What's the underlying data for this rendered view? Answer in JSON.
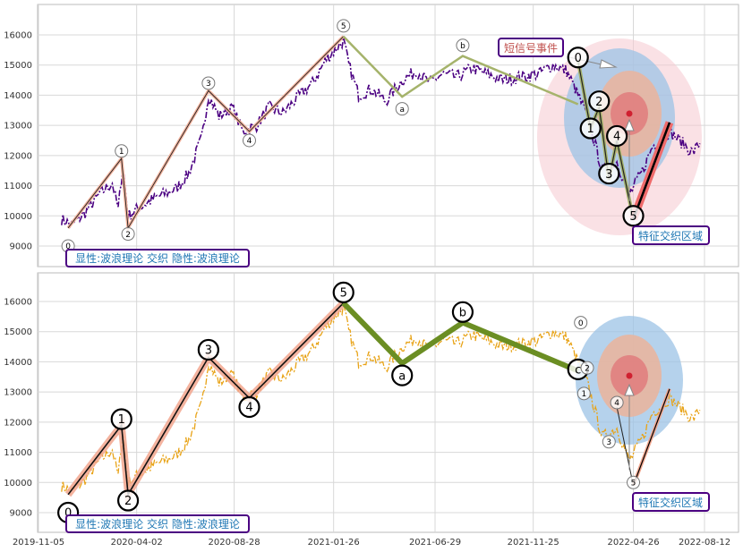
{
  "chart_data": [
    {
      "panel": "top",
      "type": "line",
      "ylim": [
        8300,
        16900
      ],
      "yticks": [
        9000,
        10000,
        11000,
        12000,
        13000,
        14000,
        15000,
        16000
      ],
      "grid": true,
      "price_series_color": "#4b0082",
      "price_series": [
        [
          "2019-12-10",
          9900
        ],
        [
          "2019-12-25",
          9700
        ],
        [
          "2020-01-15",
          10100
        ],
        [
          "2020-02-05",
          10700
        ],
        [
          "2020-02-25",
          11100
        ],
        [
          "2020-03-05",
          10200
        ],
        [
          "2020-03-12",
          11700
        ],
        [
          "2020-03-20",
          10000
        ],
        [
          "2020-04-08",
          10300
        ],
        [
          "2020-05-01",
          10600
        ],
        [
          "2020-06-01",
          10900
        ],
        [
          "2020-06-20",
          11400
        ],
        [
          "2020-07-10",
          12600
        ],
        [
          "2020-07-20",
          14000
        ],
        [
          "2020-08-05",
          13300
        ],
        [
          "2020-08-25",
          13600
        ],
        [
          "2020-09-10",
          12800
        ],
        [
          "2020-10-01",
          13000
        ],
        [
          "2020-10-20",
          13600
        ],
        [
          "2020-11-10",
          13400
        ],
        [
          "2020-12-01",
          13900
        ],
        [
          "2020-12-25",
          14400
        ],
        [
          "2021-01-15",
          15200
        ],
        [
          "2021-02-10",
          15800
        ],
        [
          "2021-02-18",
          15000
        ],
        [
          "2021-03-05",
          14000
        ],
        [
          "2021-03-25",
          14200
        ],
        [
          "2021-04-15",
          13800
        ],
        [
          "2021-05-10",
          14500
        ],
        [
          "2021-06-01",
          14800
        ],
        [
          "2021-06-20",
          14400
        ],
        [
          "2021-07-10",
          14700
        ],
        [
          "2021-08-01",
          14600
        ],
        [
          "2021-08-25",
          14900
        ],
        [
          "2021-09-15",
          14700
        ],
        [
          "2021-10-10",
          14500
        ],
        [
          "2021-11-05",
          14600
        ],
        [
          "2021-12-01",
          14700
        ],
        [
          "2021-12-25",
          15000
        ],
        [
          "2022-01-15",
          14800
        ],
        [
          "2022-02-01",
          14000
        ],
        [
          "2022-02-15",
          13300
        ],
        [
          "2022-03-10",
          11500
        ],
        [
          "2022-04-01",
          11800
        ],
        [
          "2022-04-20",
          10700
        ],
        [
          "2022-05-10",
          11500
        ],
        [
          "2022-05-25",
          12300
        ],
        [
          "2022-06-20",
          12800
        ],
        [
          "2022-07-10",
          12400
        ],
        [
          "2022-07-25",
          12100
        ],
        [
          "2022-08-05",
          12400
        ]
      ],
      "wave_primary": [
        [
          "0",
          "2019-12-20",
          9600
        ],
        [
          "1",
          "2020-03-10",
          11900
        ],
        [
          "2",
          "2020-03-20",
          9600
        ],
        [
          "3",
          "2020-07-20",
          14150
        ],
        [
          "4",
          "2020-09-20",
          12800
        ],
        [
          "5",
          "2021-02-10",
          15950
        ]
      ],
      "wave_primary_labels": [
        [
          "0",
          "2019-12-20",
          9000
        ],
        [
          "1",
          "2020-03-10",
          12150
        ],
        [
          "2",
          "2020-03-20",
          9400
        ],
        [
          "3",
          "2020-07-20",
          14400
        ],
        [
          "4",
          "2020-09-20",
          12500
        ],
        [
          "5",
          "2021-02-10",
          16300
        ]
      ],
      "wave_correction": [
        [
          "5",
          "2021-02-10",
          15950
        ],
        [
          "a",
          "2021-05-10",
          13950
        ],
        [
          "b",
          "2021-08-10",
          15300
        ],
        [
          "c",
          "2022-02-01",
          13700
        ]
      ],
      "wave_correction_labels": [
        [
          "a",
          "2021-05-10",
          13550
        ],
        [
          "b",
          "2021-08-10",
          15650
        ]
      ],
      "wave_minor": [
        [
          "0",
          "2022-02-01",
          15150
        ],
        [
          "1",
          "2022-02-20",
          12900
        ],
        [
          "2",
          "2022-03-05",
          13600
        ],
        [
          "3",
          "2022-03-20",
          11200
        ],
        [
          "4",
          "2022-04-01",
          12500
        ],
        [
          "5",
          "2022-04-26",
          9900
        ]
      ],
      "wave_minor_labels": [
        [
          "0",
          "2022-02-01",
          15250
        ],
        [
          "1",
          "2022-02-20",
          12900
        ],
        [
          "2",
          "2022-03-05",
          13800
        ],
        [
          "3",
          "2022-03-20",
          11400
        ],
        [
          "4",
          "2022-04-01",
          12650
        ],
        [
          "5",
          "2022-04-26",
          10000
        ]
      ],
      "signal_line": [
        [
          "2022-04-26",
          9900
        ],
        [
          "2022-06-20",
          13100
        ]
      ],
      "event_label": "短信号事件",
      "zone_label": "特征交织区域",
      "legend_label": "显性:波浪理论 交织 隐性:波浪理论"
    },
    {
      "panel": "bottom",
      "type": "line",
      "ylim": [
        8300,
        16900
      ],
      "yticks": [
        9000,
        10000,
        11000,
        12000,
        13000,
        14000,
        15000,
        16000
      ],
      "grid": true,
      "price_series_color": "#e8a317",
      "x_tick_labels": [
        "2019-11-05",
        "2020-04-02",
        "2020-08-28",
        "2021-01-26",
        "2021-06-29",
        "2021-11-25",
        "2022-04-26",
        "2022-08-12"
      ],
      "wave_primary_labels": [
        [
          "0",
          "2019-12-20",
          9000
        ],
        [
          "1",
          "2020-03-10",
          12100
        ],
        [
          "2",
          "2020-03-20",
          9400
        ],
        [
          "3",
          "2020-07-20",
          14400
        ],
        [
          "4",
          "2020-09-20",
          12500
        ],
        [
          "5",
          "2021-02-10",
          16300
        ]
      ],
      "wave_correction_labels": [
        [
          "a",
          "2021-05-10",
          13550
        ],
        [
          "b",
          "2021-08-10",
          15650
        ],
        [
          "c",
          "2022-02-01",
          13750
        ]
      ],
      "wave_minor_labels": [
        [
          "0",
          "2022-02-01",
          15300
        ],
        [
          "1",
          "2022-02-10",
          12950
        ],
        [
          "2",
          "2022-02-15",
          13800
        ],
        [
          "3",
          "2022-03-20",
          11350
        ],
        [
          "4",
          "2022-04-01",
          12650
        ],
        [
          "5",
          "2022-04-26",
          10000
        ]
      ],
      "zone_label": "特征交织区域",
      "legend_label": "显性:波浪理论 交织 隐性:波浪理论"
    }
  ]
}
